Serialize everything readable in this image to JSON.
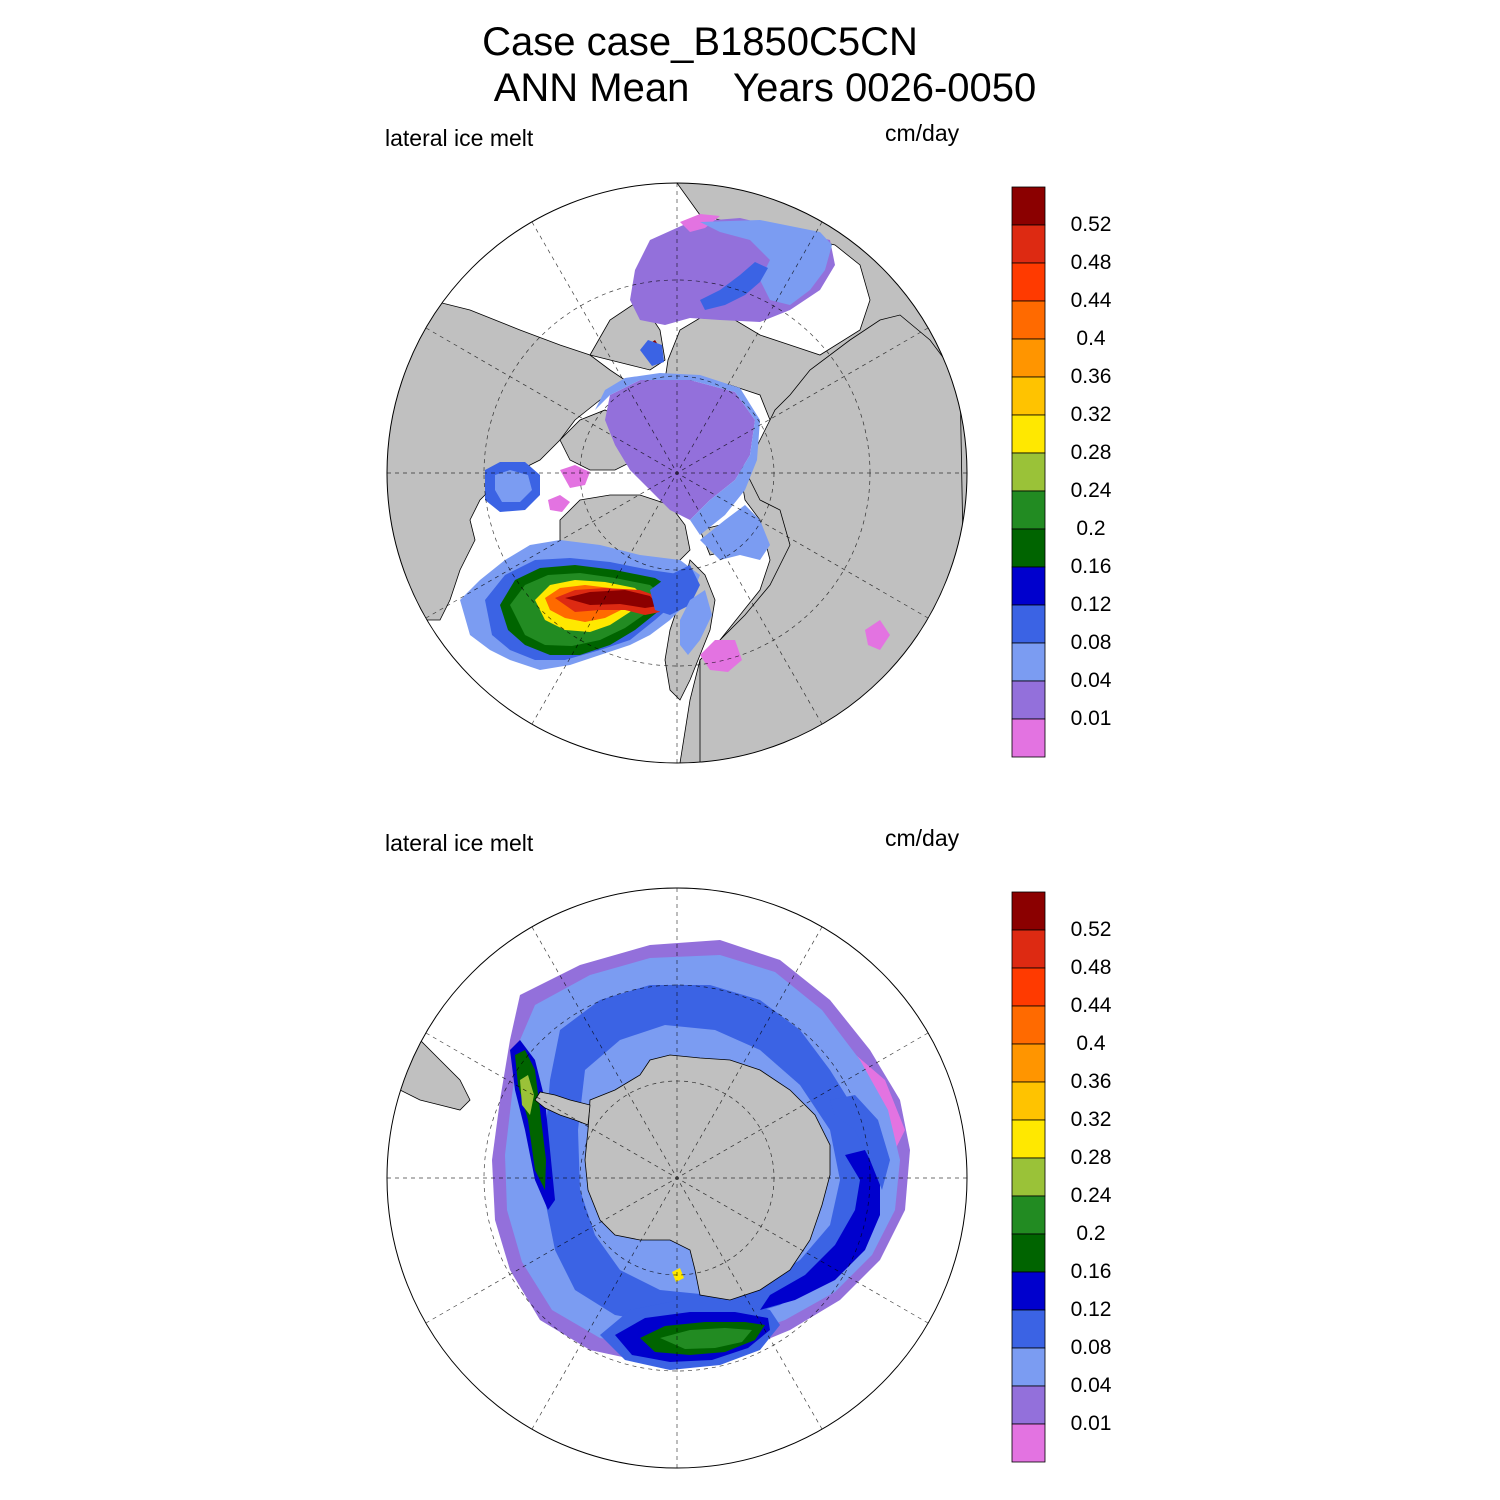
{
  "title": {
    "line1": "Case case_B1850C5CN",
    "line2": "ANN Mean    Years 0026-0050"
  },
  "panels": [
    {
      "id": "north",
      "left_label": "lateral ice melt",
      "right_label": "cm/day",
      "hemisphere": "Northern Hemisphere polar stereographic"
    },
    {
      "id": "south",
      "left_label": "lateral ice melt",
      "right_label": "cm/day",
      "hemisphere": "Southern Hemisphere polar stereographic"
    }
  ],
  "colorbar": {
    "levels": [
      "0.52",
      "0.48",
      "0.44",
      "0.4",
      "0.36",
      "0.32",
      "0.28",
      "0.24",
      "0.2",
      "0.16",
      "0.12",
      "0.08",
      "0.04",
      "0.01"
    ],
    "colors": [
      "#8b0000",
      "#dd2a12",
      "#ff3a00",
      "#ff6a00",
      "#ff9500",
      "#ffc300",
      "#ffe800",
      "#9ac238",
      "#228b22",
      "#006400",
      "#0000cd",
      "#3b63e4",
      "#7b9cf2",
      "#9370db",
      "#e373e1"
    ]
  },
  "colors": {
    "land": "#c0c0c0",
    "ocean": "#ffffff",
    "grid": "#000000"
  }
}
